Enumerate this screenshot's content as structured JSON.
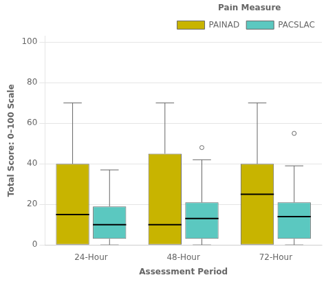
{
  "chart_data": {
    "type": "box",
    "xlabel": "Assessment Period",
    "ylabel": "Total Score: 0–100 Scale",
    "legend_title": "Pain Measure",
    "categories": [
      "24-Hour",
      "48-Hour",
      "72-Hour"
    ],
    "series": [
      {
        "name": "PAINAD",
        "color": "#C8B400",
        "boxes": [
          {
            "q1": 0,
            "median": 15,
            "q3": 40,
            "whislo": 0,
            "whishi": 70,
            "fliers": []
          },
          {
            "q1": 0,
            "median": 10,
            "q3": 45,
            "whislo": 0,
            "whishi": 70,
            "fliers": []
          },
          {
            "q1": 0,
            "median": 25,
            "q3": 40,
            "whislo": 0,
            "whishi": 70,
            "fliers": []
          }
        ]
      },
      {
        "name": "PACSLAC",
        "color": "#5BC8C0",
        "boxes": [
          {
            "q1": 3,
            "median": 10,
            "q3": 19,
            "whislo": 0,
            "whishi": 37,
            "fliers": []
          },
          {
            "q1": 3,
            "median": 13,
            "q3": 21,
            "whislo": 0,
            "whishi": 42,
            "fliers": [
              48
            ]
          },
          {
            "q1": 3,
            "median": 14,
            "q3": 21,
            "whislo": 0,
            "whishi": 39,
            "fliers": [
              55
            ]
          }
        ]
      }
    ],
    "ylim": [
      0,
      103
    ],
    "yticks": [
      0,
      20,
      40,
      60,
      80,
      100
    ],
    "grid": "y",
    "legend": "upper right"
  }
}
